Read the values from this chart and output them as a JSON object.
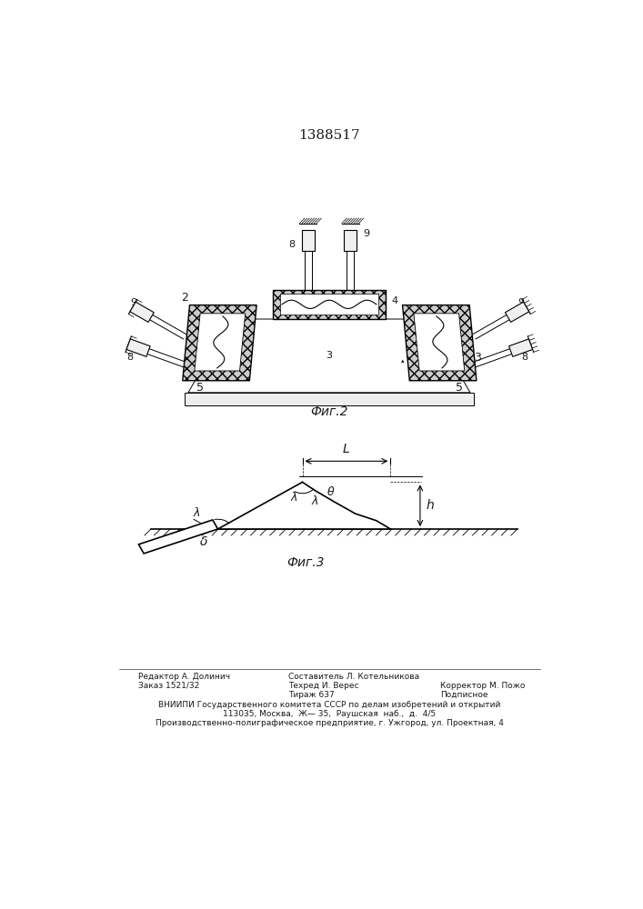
{
  "title": "1388517",
  "fig2_label": "Фиг.2",
  "fig3_label": "Фиг.3",
  "footer_line1_left": "Редактор А. Долинич",
  "footer_line2_left": "Заказ 1521/32",
  "footer_line1_center": "Составитель Л. Котельникова",
  "footer_line2_center": "Техред И. Верес",
  "footer_line3_center": "Тираж 637",
  "footer_line1_right": "Корректор М. Пожо",
  "footer_line2_right": "Подписное",
  "footer_vniip": "ВНИИПИ Государственного комитета СССР по делам изобретений и открытий",
  "footer_addr": "113035, Москва,  Ж— 35,  Раушская  наб.,  д.  4/5",
  "footer_prod": "Производственно-полиграфическое предприятие, г. Ужгород, ул. Проектная, 4",
  "bg_color": "#ffffff",
  "line_color": "#1a1a1a",
  "font_size_title": 11,
  "font_size_fig": 10,
  "font_size_label": 8,
  "font_size_footer": 6.5
}
